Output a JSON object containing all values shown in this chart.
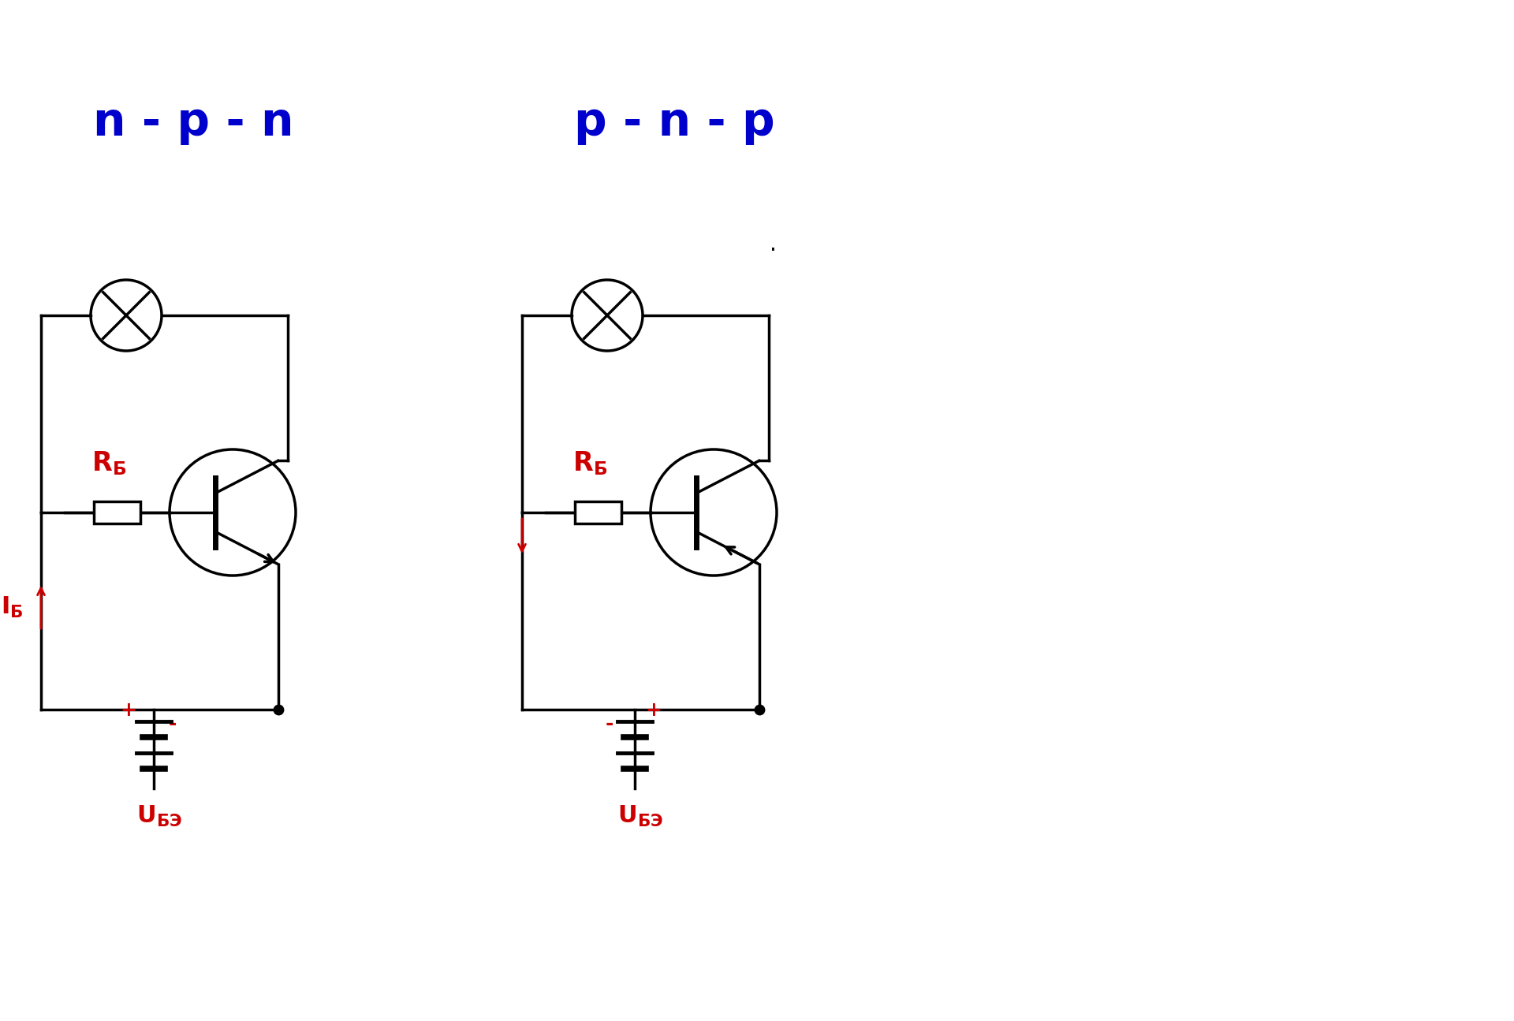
{
  "title_npn": "n - p - n",
  "title_pnp": "p - n - p",
  "title_color": "#0000CC",
  "title_fontsize": 42,
  "bg_color": "#ffffff",
  "line_color": "#000000",
  "red_color": "#CC0000",
  "lw": 2.5,
  "dot_text": "."
}
